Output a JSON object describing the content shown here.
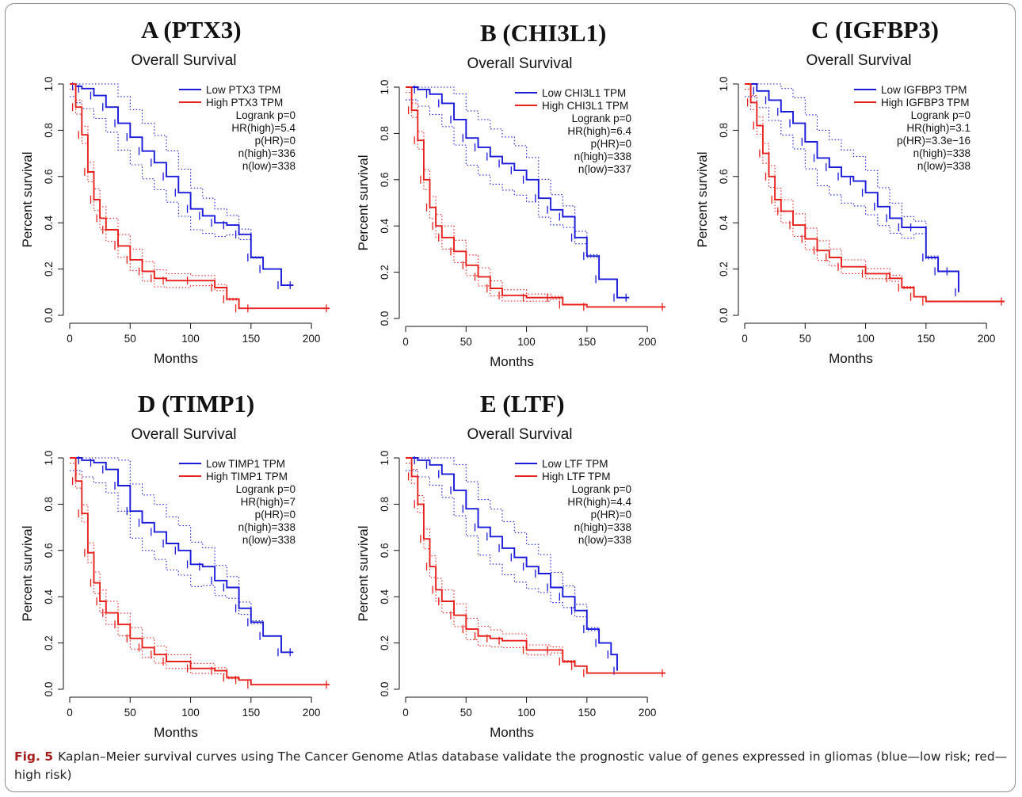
{
  "caption": {
    "label": "Fig. 5",
    "text": "Kaplan–Meier survival curves using The Cancer Genome Atlas database validate the prognostic value of genes expressed in gliomas (blue—low risk; red—high risk)"
  },
  "colors": {
    "low": "#1a1adb",
    "high": "#e8201c"
  },
  "chart_data": [
    {
      "type": "line",
      "panel_title": "A (PTX3)",
      "title": "Overall Survival",
      "xlabel": "Months",
      "ylabel": "Percent survival",
      "xlim": [
        0,
        215
      ],
      "ylim": [
        0,
        1
      ],
      "x_ticks": [
        0,
        50,
        100,
        150,
        200
      ],
      "y_ticks": [
        "0.0",
        "0.2",
        "0.4",
        "0.6",
        "0.8",
        "1.0"
      ],
      "legend": [
        "Low PTX3 TPM",
        "High PTX3 TPM"
      ],
      "stats": [
        "Logrank p=0",
        "HR(high)=5.4",
        "p(HR)=0",
        "n(high)=336",
        "n(low)=338"
      ],
      "series": [
        {
          "name": "Low PTX3 TPM",
          "x": [
            0,
            5,
            10,
            20,
            30,
            40,
            50,
            60,
            70,
            80,
            90,
            100,
            110,
            120,
            130,
            140,
            150,
            160,
            175,
            185
          ],
          "y": [
            1.0,
            0.99,
            0.98,
            0.95,
            0.9,
            0.83,
            0.77,
            0.71,
            0.66,
            0.6,
            0.53,
            0.46,
            0.43,
            0.4,
            0.39,
            0.35,
            0.25,
            0.2,
            0.13,
            0.13
          ]
        },
        {
          "name": "High PTX3 TPM",
          "x": [
            0,
            5,
            10,
            15,
            20,
            25,
            30,
            40,
            50,
            60,
            70,
            80,
            100,
            120,
            130,
            140,
            150,
            215
          ],
          "y": [
            1.0,
            0.9,
            0.78,
            0.62,
            0.5,
            0.42,
            0.37,
            0.3,
            0.24,
            0.19,
            0.16,
            0.15,
            0.15,
            0.12,
            0.07,
            0.03,
            0.03,
            0.03
          ]
        }
      ]
    },
    {
      "type": "line",
      "panel_title": "B (CHI3L1)",
      "title": "Overall Survival",
      "xlabel": "Months",
      "ylabel": "Percent survival",
      "xlim": [
        0,
        215
      ],
      "ylim": [
        0,
        1
      ],
      "x_ticks": [
        0,
        50,
        100,
        150,
        200
      ],
      "y_ticks": [
        "0.0",
        "0.2",
        "0.4",
        "0.6",
        "0.8",
        "1.0"
      ],
      "legend": [
        "Low CHI3L1 TPM",
        "High CHI3L1 TPM"
      ],
      "stats": [
        "Logrank p=0",
        "HR(high)=6.4",
        "p(HR)=0",
        "n(high)=338",
        "n(low)=337"
      ],
      "series": [
        {
          "name": "Low CHI3L1 TPM",
          "x": [
            0,
            10,
            20,
            30,
            40,
            50,
            60,
            70,
            80,
            90,
            100,
            110,
            120,
            130,
            140,
            150,
            160,
            175,
            185
          ],
          "y": [
            1.0,
            0.99,
            0.97,
            0.93,
            0.86,
            0.78,
            0.74,
            0.7,
            0.67,
            0.64,
            0.6,
            0.52,
            0.47,
            0.44,
            0.35,
            0.27,
            0.17,
            0.09,
            0.09
          ]
        },
        {
          "name": "High CHI3L1 TPM",
          "x": [
            0,
            5,
            10,
            15,
            20,
            25,
            30,
            40,
            50,
            60,
            70,
            80,
            100,
            120,
            130,
            150,
            215
          ],
          "y": [
            1.0,
            0.9,
            0.77,
            0.6,
            0.48,
            0.4,
            0.35,
            0.29,
            0.23,
            0.18,
            0.13,
            0.1,
            0.09,
            0.09,
            0.06,
            0.05,
            0.05
          ]
        }
      ]
    },
    {
      "type": "line",
      "panel_title": "C (IGFBP3)",
      "title": "Overall Survival",
      "xlabel": "Months",
      "ylabel": "Percent survival",
      "xlim": [
        0,
        215
      ],
      "ylim": [
        0,
        1
      ],
      "x_ticks": [
        0,
        50,
        100,
        150,
        200
      ],
      "y_ticks": [
        "0.0",
        "0.2",
        "0.4",
        "0.6",
        "0.8",
        "1.0"
      ],
      "legend": [
        "Low IGFBP3 TPM",
        "High IGFBP3 TPM"
      ],
      "stats": [
        "Logrank p=0",
        "HR(high)=3.1",
        "p(HR)=3.3e−16",
        "n(high)=338",
        "n(low)=338"
      ],
      "series": [
        {
          "name": "Low IGFBP3 TPM",
          "x": [
            0,
            10,
            20,
            30,
            40,
            50,
            60,
            70,
            80,
            90,
            100,
            110,
            120,
            130,
            140,
            150,
            160,
            170,
            177
          ],
          "y": [
            1.0,
            0.97,
            0.93,
            0.88,
            0.83,
            0.75,
            0.68,
            0.64,
            0.6,
            0.58,
            0.53,
            0.47,
            0.42,
            0.38,
            0.38,
            0.25,
            0.19,
            0.19,
            0.1
          ]
        },
        {
          "name": "High IGFBP3 TPM",
          "x": [
            0,
            5,
            10,
            15,
            20,
            25,
            30,
            40,
            50,
            60,
            70,
            80,
            100,
            120,
            130,
            140,
            150,
            215
          ],
          "y": [
            1.0,
            0.92,
            0.82,
            0.7,
            0.6,
            0.5,
            0.45,
            0.39,
            0.33,
            0.28,
            0.25,
            0.21,
            0.18,
            0.16,
            0.12,
            0.08,
            0.06,
            0.06
          ]
        }
      ]
    },
    {
      "type": "line",
      "panel_title": "D (TIMP1)",
      "title": "Overall Survival",
      "xlabel": "Months",
      "ylabel": "Percent survival",
      "xlim": [
        0,
        215
      ],
      "ylim": [
        0,
        1
      ],
      "x_ticks": [
        0,
        50,
        100,
        150,
        200
      ],
      "y_ticks": [
        "0.0",
        "0.2",
        "0.4",
        "0.6",
        "0.8",
        "1.0"
      ],
      "legend": [
        "Low TIMP1 TPM",
        "High TIMP1 TPM"
      ],
      "stats": [
        "Logrank p=0",
        "HR(high)=7",
        "p(HR)=0",
        "n(high)=338",
        "n(low)=338"
      ],
      "series": [
        {
          "name": "Low TIMP1 TPM",
          "x": [
            0,
            10,
            20,
            30,
            40,
            50,
            60,
            70,
            80,
            90,
            100,
            110,
            120,
            130,
            140,
            150,
            160,
            175,
            185
          ],
          "y": [
            1.0,
            0.99,
            0.98,
            0.95,
            0.88,
            0.77,
            0.72,
            0.68,
            0.63,
            0.6,
            0.54,
            0.53,
            0.47,
            0.44,
            0.35,
            0.29,
            0.23,
            0.16,
            0.16
          ]
        },
        {
          "name": "High TIMP1 TPM",
          "x": [
            0,
            5,
            10,
            15,
            20,
            25,
            30,
            40,
            50,
            60,
            70,
            80,
            100,
            120,
            130,
            140,
            150,
            215
          ],
          "y": [
            1.0,
            0.9,
            0.76,
            0.59,
            0.46,
            0.38,
            0.33,
            0.28,
            0.22,
            0.18,
            0.15,
            0.12,
            0.09,
            0.08,
            0.05,
            0.04,
            0.02,
            0.02
          ]
        }
      ]
    },
    {
      "type": "line",
      "panel_title": "E (LTF)",
      "title": "Overall Survival",
      "xlabel": "Months",
      "ylabel": "Percent survival",
      "xlim": [
        0,
        215
      ],
      "ylim": [
        0,
        1
      ],
      "x_ticks": [
        0,
        50,
        100,
        150,
        200
      ],
      "y_ticks": [
        "0.0",
        "0.2",
        "0.4",
        "0.6",
        "0.8",
        "1.0"
      ],
      "legend": [
        "Low LTF TPM",
        "High LTF TPM"
      ],
      "stats": [
        "Logrank p=0",
        "HR(high)=4.4",
        "p(HR)=0",
        "n(high)=338",
        "n(low)=338"
      ],
      "series": [
        {
          "name": "Low LTF TPM",
          "x": [
            0,
            10,
            20,
            30,
            40,
            50,
            60,
            70,
            80,
            90,
            100,
            110,
            120,
            130,
            140,
            150,
            160,
            170,
            175
          ],
          "y": [
            1.0,
            0.99,
            0.97,
            0.93,
            0.86,
            0.78,
            0.7,
            0.66,
            0.61,
            0.57,
            0.53,
            0.5,
            0.44,
            0.4,
            0.34,
            0.26,
            0.2,
            0.15,
            0.08
          ]
        },
        {
          "name": "High LTF TPM",
          "x": [
            0,
            5,
            10,
            15,
            20,
            25,
            30,
            40,
            50,
            60,
            70,
            80,
            100,
            120,
            130,
            140,
            150,
            215
          ],
          "y": [
            1.0,
            0.92,
            0.8,
            0.65,
            0.53,
            0.43,
            0.38,
            0.32,
            0.26,
            0.23,
            0.22,
            0.21,
            0.17,
            0.17,
            0.12,
            0.1,
            0.07,
            0.07
          ]
        }
      ]
    }
  ]
}
